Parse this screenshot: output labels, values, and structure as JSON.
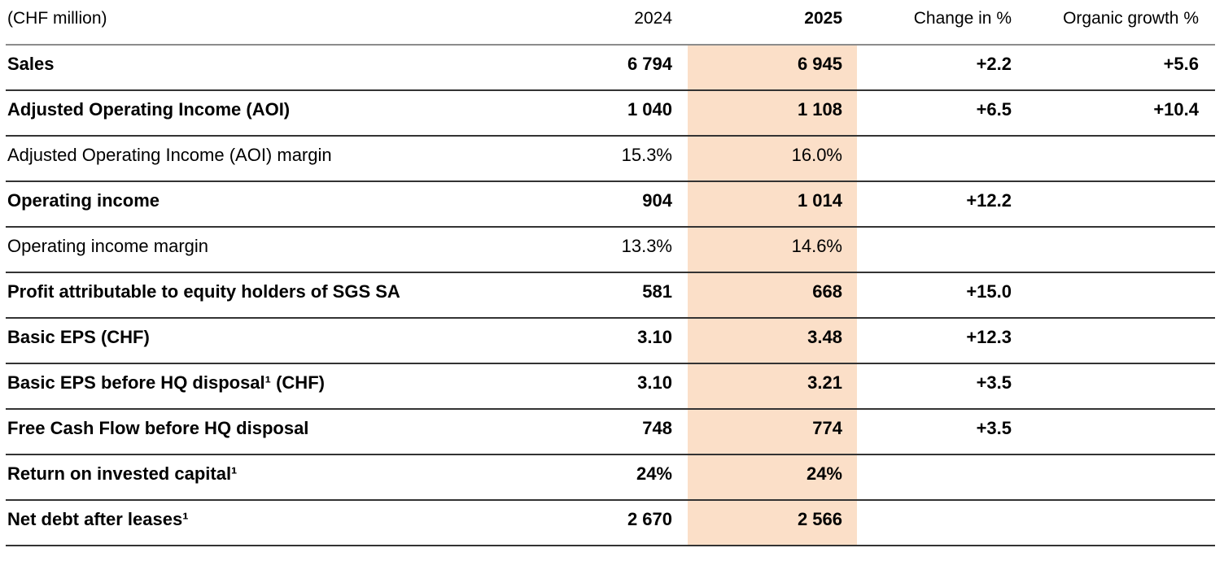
{
  "table": {
    "unit_label": "(CHF million)",
    "highlight_color": "#FBDFC8",
    "text_color": "#000000",
    "header_rule_color": "#8c8c8c",
    "row_rule_color": "#333333",
    "columns": {
      "y2024": "2024",
      "y2025": "2025",
      "change": "Change in %",
      "organic": "Organic growth %"
    },
    "rows": [
      {
        "label": "Sales",
        "y2024": "6 794",
        "y2025": "6 945",
        "change": "+2.2",
        "organic": "+5.6",
        "bold": true
      },
      {
        "label": "Adjusted Operating Income (AOI)",
        "y2024": "1 040",
        "y2025": "1 108",
        "change": "+6.5",
        "organic": "+10.4",
        "bold": true
      },
      {
        "label": "Adjusted Operating Income (AOI) margin",
        "y2024": "15.3%",
        "y2025": "16.0%",
        "change": "",
        "organic": "",
        "bold": false
      },
      {
        "label": "Operating income",
        "y2024": "904",
        "y2025": "1 014",
        "change": "+12.2",
        "organic": "",
        "bold": true
      },
      {
        "label": "Operating income margin",
        "y2024": "13.3%",
        "y2025": "14.6%",
        "change": "",
        "organic": "",
        "bold": false
      },
      {
        "label": "Profit attributable to equity holders of SGS SA",
        "y2024": "581",
        "y2025": "668",
        "change": "+15.0",
        "organic": "",
        "bold": true
      },
      {
        "label": "Basic EPS (CHF)",
        "y2024": "3.10",
        "y2025": "3.48",
        "change": "+12.3",
        "organic": "",
        "bold": true
      },
      {
        "label": "Basic EPS before HQ disposal¹ (CHF)",
        "y2024": "3.10",
        "y2025": "3.21",
        "change": "+3.5",
        "organic": "",
        "bold": true
      },
      {
        "label": "Free Cash Flow before HQ disposal",
        "y2024": "748",
        "y2025": "774",
        "change": "+3.5",
        "organic": "",
        "bold": true
      },
      {
        "label": "Return on invested capital¹",
        "y2024": "24%",
        "y2025": "24%",
        "change": "",
        "organic": "",
        "bold": true
      },
      {
        "label": "Net debt after leases¹",
        "y2024": "2 670",
        "y2025": "2 566",
        "change": "",
        "organic": "",
        "bold": true
      }
    ]
  }
}
